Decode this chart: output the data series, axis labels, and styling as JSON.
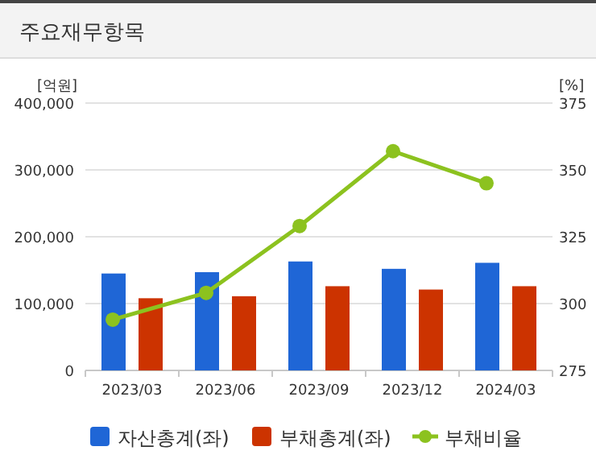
{
  "chart_data": {
    "type": "bar",
    "title": "주요재무항목",
    "ylabel": "[억원]",
    "y2label": "[%]",
    "categories": [
      "2023/03",
      "2023/06",
      "2023/09",
      "2023/12",
      "2024/03"
    ],
    "series": [
      {
        "name": "자산총계(좌)",
        "color": "#1f66d6",
        "values": [
          145000,
          147000,
          163000,
          152000,
          161000
        ]
      },
      {
        "name": "부채총계(좌)",
        "color": "#cc3300",
        "values": [
          108000,
          111000,
          126000,
          121000,
          126000
        ]
      },
      {
        "name": "부채비율",
        "type": "line",
        "axis": "y2",
        "color": "#8cc21f",
        "marker": "circle",
        "values": [
          294,
          304,
          329,
          357,
          345
        ]
      }
    ],
    "ylim": [
      0,
      400000
    ],
    "yticks": [
      0,
      {
        "value": 100000,
        "label": "100,000"
      },
      {
        "value": 200000,
        "label": "200,000"
      },
      {
        "value": 300000,
        "label": "300,000"
      },
      {
        "value": 400000,
        "label": "400,000"
      }
    ],
    "y2lim": [
      275,
      375
    ],
    "y2ticks": [
      275,
      300,
      325,
      350,
      375
    ],
    "grid": "y",
    "legend": "bottom"
  }
}
